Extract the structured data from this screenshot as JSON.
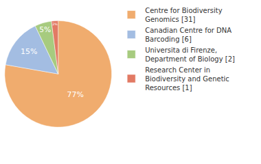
{
  "chart_data": {
    "type": "pie",
    "categories": [
      "Centre for Biodiversity Genomics [31]",
      "Canadian Centre for DNA Barcoding [6]",
      "Universita di Firenze, Department of Biology [2]",
      "Research Center in Biodiversity and Genetic Resources [1]"
    ],
    "values": [
      77,
      15,
      5,
      2
    ],
    "value_labels": [
      "77%",
      "15%",
      "5%",
      "2%"
    ],
    "colors": [
      "#f0ac6e",
      "#a3bde2",
      "#a7cb7f",
      "#e27a64"
    ],
    "data_labels": true,
    "legend": "right"
  }
}
